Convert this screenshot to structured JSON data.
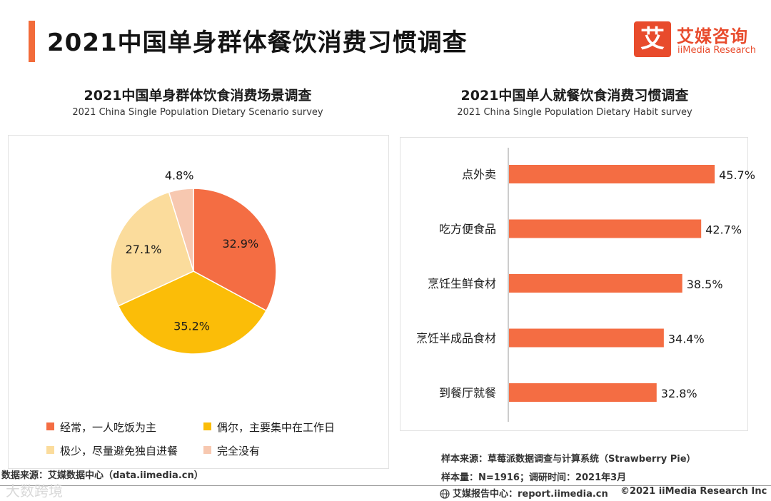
{
  "page": {
    "title": "2021中国单身群体餐饮消费习惯调查"
  },
  "logo": {
    "mark": "艾",
    "name_cn": "艾媒咨询",
    "name_en": "iiMedia Research"
  },
  "colors": {
    "accent": "#f26b3a",
    "bar": "#f46d43",
    "pie_often": "#f46d43",
    "pie_sometimes": "#fbbd08",
    "pie_rarely": "#fbdc9c",
    "pie_never": "#f7c8b0"
  },
  "chart_data": [
    {
      "type": "pie",
      "title": "2021中国单身群体饮食消费场景调查",
      "subtitle": "2021 China Single Population Dietary Scenario survey",
      "categories": [
        "经常，一人吃饭为主",
        "偶尔，主要集中在工作日",
        "极少，尽量避免独自进餐",
        "完全没有"
      ],
      "values": [
        32.9,
        35.2,
        27.1,
        4.8
      ],
      "labels": [
        "32.9%",
        "35.2%",
        "27.1%",
        "4.8%"
      ],
      "legend_position": "bottom"
    },
    {
      "type": "bar",
      "orientation": "horizontal",
      "title": "2021中国单人就餐饮食消费习惯调查",
      "subtitle": "2021 China Single Population Dietary Habit survey",
      "categories": [
        "点外卖",
        "吃方便食品",
        "烹饪生鲜食材",
        "烹饪半成品食材",
        "到餐厅就餐"
      ],
      "values": [
        45.7,
        42.7,
        38.5,
        34.4,
        32.8
      ],
      "labels": [
        "45.7%",
        "42.7%",
        "38.5%",
        "34.4%",
        "32.8%"
      ],
      "xlim": [
        0,
        46
      ]
    }
  ],
  "footer": {
    "sample_source": "样本来源：草莓派数据调查与计算系统（Strawberry Pie）",
    "sample_size": "样本量：N=1916；调研时间：2021年3月",
    "data_source": "数据来源：艾媒数据中心（data.iimedia.cn）",
    "report_center": "艾媒报告中心：report.iimedia.cn",
    "copyright": "©2021  iiMedia Research  Inc",
    "watermark": "大数跨境"
  }
}
